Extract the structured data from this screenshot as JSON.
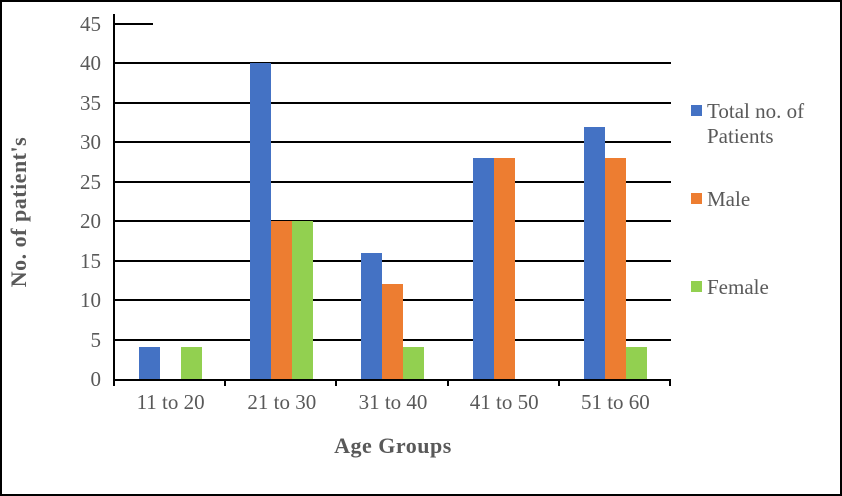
{
  "chart_data": {
    "type": "bar",
    "title": "",
    "categories": [
      "11 to 20",
      "21 to 30",
      "31 to 40",
      "41 to 50",
      "51 to 60"
    ],
    "series": [
      {
        "name": "Total no. of Patients",
        "color": "#4472C4",
        "values": [
          4,
          40,
          16,
          28,
          32
        ]
      },
      {
        "name": "Male",
        "color": "#ED7D31",
        "values": [
          0,
          20,
          12,
          28,
          28
        ]
      },
      {
        "name": "Female",
        "color": "#92D050",
        "values": [
          4,
          20,
          4,
          0,
          4
        ]
      }
    ],
    "xlabel": "Age Groups",
    "ylabel": "No. of patient's",
    "ylim": [
      0,
      45
    ],
    "yticks": [
      0,
      5,
      10,
      15,
      20,
      25,
      30,
      35,
      40,
      45
    ],
    "grid": true,
    "gridline_color": "#000000",
    "text_color": "#595959",
    "legend_position": "right"
  }
}
